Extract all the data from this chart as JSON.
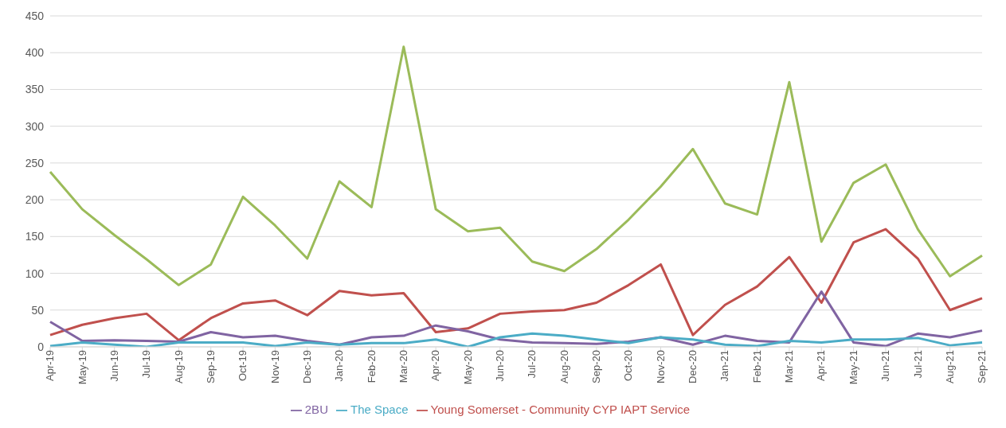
{
  "chart_data": {
    "type": "line",
    "categories": [
      "Apr-19",
      "May-19",
      "Jun-19",
      "Jul-19",
      "Aug-19",
      "Sep-19",
      "Oct-19",
      "Nov-19",
      "Dec-19",
      "Jan-20",
      "Feb-20",
      "Mar-20",
      "Apr-20",
      "May-20",
      "Jun-20",
      "Jul-20",
      "Aug-20",
      "Sep-20",
      "Oct-20",
      "Nov-20",
      "Dec-20",
      "Jan-21",
      "Feb-21",
      "Mar-21",
      "Apr-21",
      "May-21",
      "Jun-21",
      "Jul-21",
      "Aug-21",
      "Sep-21"
    ],
    "series": [
      {
        "name": "Young Somerset - Community CYP IAPT Service",
        "color": "#c0504d",
        "values": [
          16,
          30,
          39,
          45,
          9,
          39,
          59,
          63,
          43,
          76,
          70,
          73,
          20,
          25,
          45,
          48,
          50,
          60,
          84,
          112,
          16,
          57,
          82,
          122,
          60,
          142,
          160,
          120,
          50,
          66
        ]
      },
      {
        "color": "#9bbb59",
        "values": [
          238,
          187,
          152,
          119,
          84,
          112,
          204,
          165,
          120,
          225,
          190,
          408,
          187,
          157,
          162,
          116,
          103,
          133,
          173,
          218,
          269,
          195,
          180,
          360,
          143,
          223,
          248,
          160,
          96,
          124
        ]
      },
      {
        "name": "2BU",
        "color": "#8064a2",
        "values": [
          34,
          8,
          9,
          8,
          7,
          20,
          13,
          15,
          8,
          3,
          13,
          15,
          29,
          21,
          10,
          6,
          5,
          4,
          7,
          13,
          3,
          15,
          8,
          6,
          75,
          6,
          1,
          18,
          13,
          22
        ]
      },
      {
        "name": "The Space",
        "color": "#4bacc6",
        "values": [
          1,
          6,
          3,
          0,
          6,
          6,
          6,
          1,
          6,
          3,
          5,
          5,
          10,
          0,
          13,
          18,
          15,
          10,
          5,
          13,
          10,
          3,
          1,
          8,
          6,
          10,
          10,
          12,
          2,
          6
        ]
      }
    ],
    "ylim": [
      0,
      450
    ],
    "yticks": [
      0,
      50,
      100,
      150,
      200,
      250,
      300,
      350,
      400,
      450
    ],
    "grid": "y",
    "legend": "bottom",
    "marker": "none",
    "line_style": "solid"
  }
}
